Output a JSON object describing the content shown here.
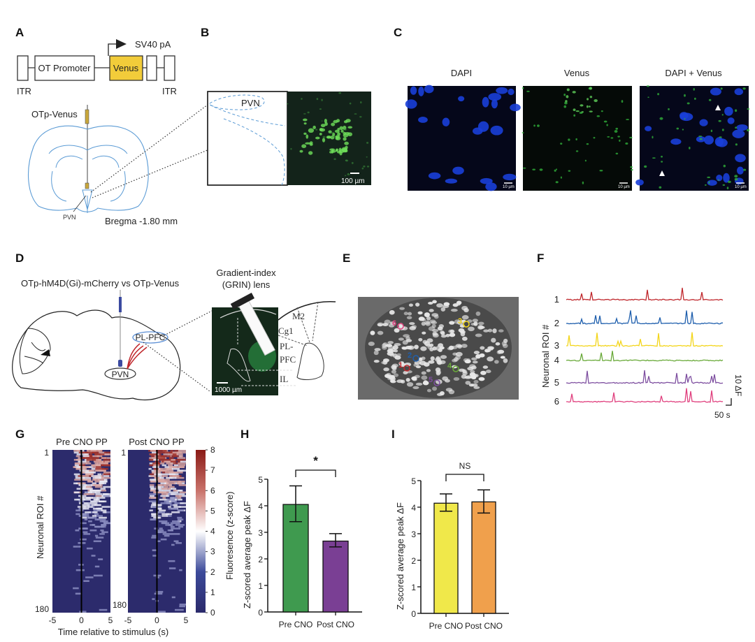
{
  "panels": {
    "A": {
      "label": "A",
      "itr_left": "ITR",
      "itr_right": "ITR",
      "promoter": "OT Promoter",
      "reporter": "Venus",
      "polyA": "SV40 pA",
      "injection": "OTp-Venus",
      "region": "PVN",
      "bregma": "Bregma -1.80 mm",
      "reporter_color": "#f2cc3a",
      "atlas_color": "#5b9bd5"
    },
    "B": {
      "label": "B",
      "region": "PVN",
      "scale": "100 µm"
    },
    "C": {
      "label": "C",
      "titles": [
        "DAPI",
        "Venus",
        "DAPI + Venus"
      ],
      "scale": "10 µm"
    },
    "D": {
      "label": "D",
      "construct": "OTp-hM4D(Gi)-mCherry vs OTp-Venus",
      "lens_line1": "Gradient-index",
      "lens_line2": "(GRIN) lens",
      "target": "PL-PFC",
      "source": "PVN",
      "areas": [
        "M2",
        "Cg1",
        "PL-",
        "PFC",
        "IL"
      ],
      "scale": "1000 µm"
    },
    "E": {
      "label": "E",
      "rois": [
        "1",
        "2",
        "3",
        "4",
        "5",
        "6"
      ]
    },
    "F": {
      "label": "F",
      "ylabel": "Neuronal ROI #",
      "rois": [
        "1",
        "2",
        "3",
        "4",
        "5",
        "6"
      ],
      "colors": [
        "#c0282d",
        "#1f5fad",
        "#f3d51a",
        "#6aaa3a",
        "#7e4fa0",
        "#e0407e"
      ],
      "scale_y": "10 ΔF",
      "scale_x": "50 s"
    },
    "G": {
      "label": "G",
      "titles": [
        "Pre CNO PP",
        "Post CNO PP"
      ],
      "ylabel": "Neuronal  ROI #",
      "xlabel": "Time relative to stimulus (s)",
      "xticks": [
        "-5",
        "0",
        "5"
      ],
      "row_first": "1",
      "row_last": "180",
      "colorbar_label": "Fluoresence (z-score)",
      "colorbar_ticks": [
        "0",
        "1",
        "2",
        "3",
        "4",
        "5",
        "6",
        "7",
        "8"
      ]
    }
  },
  "chart_data": [
    {
      "type": "bar",
      "panel": "H",
      "title": "",
      "categories": [
        "Pre CNO",
        "Post CNO"
      ],
      "values": [
        4.05,
        2.67
      ],
      "error_low": [
        3.4,
        2.45
      ],
      "error_high": [
        4.75,
        2.95
      ],
      "colors": [
        "#3f9a4f",
        "#7a3f94"
      ],
      "ylabel": "Z-scored average peak ΔF",
      "xlabel": "",
      "ylim": [
        0,
        5
      ],
      "yticks": [
        "0",
        "1",
        "2",
        "3",
        "4",
        "5"
      ],
      "significance": "*"
    },
    {
      "type": "bar",
      "panel": "I",
      "title": "",
      "categories": [
        "Pre CNO",
        "Post CNO"
      ],
      "values": [
        4.15,
        4.2
      ],
      "error_low": [
        3.85,
        3.78
      ],
      "error_high": [
        4.5,
        4.65
      ],
      "colors": [
        "#f0e84a",
        "#f0a04c"
      ],
      "ylabel": "Z-scored average peak ΔF",
      "xlabel": "",
      "ylim": [
        0,
        5
      ],
      "yticks": [
        "0",
        "1",
        "2",
        "3",
        "4",
        "5"
      ],
      "significance": "NS"
    }
  ]
}
